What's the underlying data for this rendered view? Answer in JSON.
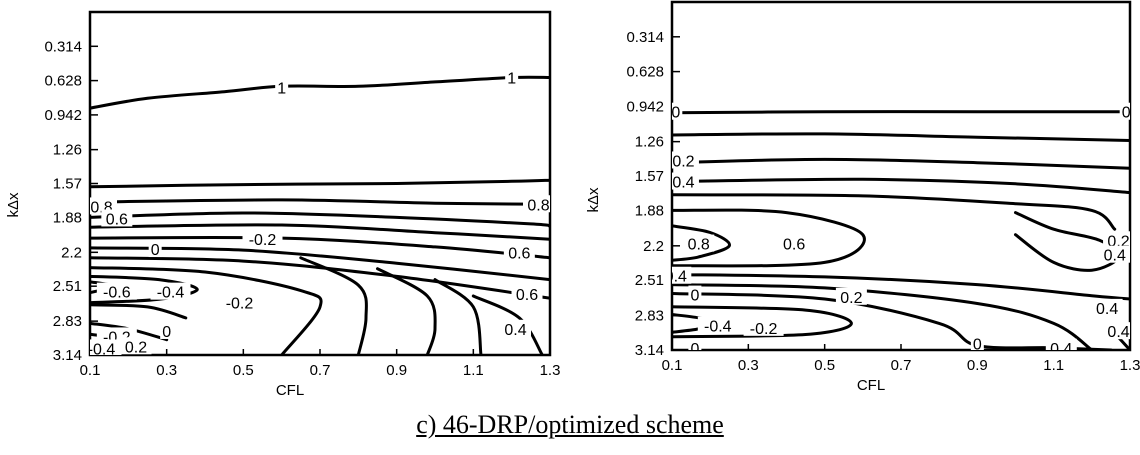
{
  "caption": "c)  46-DRP/optimized scheme",
  "chart_data": [
    {
      "type": "contour",
      "xlabel": "CFL",
      "ylabel": "kΔx",
      "xlim": [
        0.1,
        1.3
      ],
      "ylim": [
        0.0,
        3.14
      ],
      "y_reversed": true,
      "xticks": [
        "0.1",
        "0.3",
        "0.5",
        "0.7",
        "0.9",
        "1.1",
        "1.3"
      ],
      "yticks": [
        "0.314",
        "0.628",
        "0.942",
        "1.26",
        "1.57",
        "1.88",
        "2.2",
        "2.51",
        "2.83",
        "3.14"
      ],
      "contours": [
        {
          "level": "1",
          "points": [
            [
              0.1,
              0.88
            ],
            [
              0.25,
              0.79
            ],
            [
              0.45,
              0.73
            ],
            [
              0.6,
              0.68
            ],
            [
              0.8,
              0.68
            ],
            [
              1.0,
              0.64
            ],
            [
              1.2,
              0.6
            ],
            [
              1.3,
              0.6
            ]
          ]
        },
        {
          "level": "",
          "points": [
            [
              0.1,
              1.6
            ],
            [
              0.5,
              1.58
            ],
            [
              0.9,
              1.57
            ],
            [
              1.2,
              1.55
            ],
            [
              1.3,
              1.54
            ]
          ]
        },
        {
          "level": "0.8",
          "points": [
            [
              0.1,
              1.74
            ],
            [
              0.6,
              1.72
            ],
            [
              1.0,
              1.75
            ],
            [
              1.3,
              1.76
            ]
          ]
        },
        {
          "level": "0.6",
          "points": [
            [
              0.1,
              1.88
            ],
            [
              0.5,
              1.84
            ],
            [
              0.9,
              1.88
            ],
            [
              1.25,
              1.94
            ],
            [
              1.3,
              1.96
            ]
          ]
        },
        {
          "level": "",
          "points": [
            [
              0.1,
              1.97
            ],
            [
              0.6,
              1.95
            ],
            [
              1.0,
              2.02
            ],
            [
              1.3,
              2.08
            ]
          ]
        },
        {
          "level": "0.2",
          "points": [
            [
              0.1,
              2.07
            ],
            [
              0.6,
              2.07
            ],
            [
              1.0,
              2.15
            ],
            [
              1.3,
              2.25
            ]
          ]
        },
        {
          "level": "0",
          "points": [
            [
              0.1,
              2.16
            ],
            [
              0.5,
              2.18
            ],
            [
              0.9,
              2.3
            ],
            [
              1.3,
              2.45
            ]
          ]
        },
        {
          "level": "",
          "points": [
            [
              0.1,
              2.25
            ],
            [
              0.5,
              2.28
            ],
            [
              0.9,
              2.42
            ],
            [
              1.3,
              2.62
            ]
          ]
        },
        {
          "level": "-0.2",
          "points": [
            [
              0.1,
              2.34
            ],
            [
              0.4,
              2.38
            ],
            [
              0.65,
              2.55
            ],
            [
              0.7,
              2.7
            ],
            [
              0.6,
              3.14
            ]
          ]
        },
        {
          "level": "-0.4",
          "points": [
            [
              0.1,
              2.42
            ],
            [
              0.28,
              2.45
            ],
            [
              0.38,
              2.54
            ],
            [
              0.28,
              2.63
            ],
            [
              0.1,
              2.66
            ]
          ]
        },
        {
          "level": "-0.6",
          "points": [
            [
              0.1,
              2.47
            ],
            [
              0.16,
              2.51
            ],
            [
              0.1,
              2.57
            ]
          ]
        },
        {
          "level": "",
          "points": [
            [
              0.65,
              2.25
            ],
            [
              0.8,
              2.5
            ],
            [
              0.82,
              2.8
            ],
            [
              0.8,
              3.14
            ]
          ]
        },
        {
          "level": "",
          "points": [
            [
              0.85,
              2.35
            ],
            [
              0.98,
              2.6
            ],
            [
              1.0,
              2.9
            ],
            [
              0.98,
              3.14
            ]
          ]
        },
        {
          "level": "",
          "points": [
            [
              1.0,
              2.45
            ],
            [
              1.1,
              2.7
            ],
            [
              1.12,
              3.14
            ]
          ]
        },
        {
          "level": "0.4",
          "points": [
            [
              1.1,
              2.6
            ],
            [
              1.22,
              2.8
            ],
            [
              1.28,
              3.14
            ]
          ]
        },
        {
          "level": "0",
          "points": [
            [
              0.1,
              2.68
            ],
            [
              0.25,
              2.7
            ],
            [
              0.35,
              2.8
            ]
          ]
        },
        {
          "level": "-0.2",
          "points": [
            [
              0.1,
              2.85
            ],
            [
              0.2,
              2.9
            ],
            [
              0.3,
              3.0
            ]
          ]
        },
        {
          "level": "-0.4",
          "points": [
            [
              0.1,
              2.95
            ],
            [
              0.18,
              3.0
            ],
            [
              0.22,
              3.14
            ]
          ]
        }
      ],
      "labels": [
        {
          "text": "1",
          "x": 0.6,
          "y": 0.69
        },
        {
          "text": "1",
          "x": 1.2,
          "y": 0.6
        },
        {
          "text": "0.8",
          "x": 0.13,
          "y": 1.78
        },
        {
          "text": "0.8",
          "x": 1.27,
          "y": 1.76
        },
        {
          "text": "0.6",
          "x": 0.17,
          "y": 1.89
        },
        {
          "text": "0",
          "x": 0.27,
          "y": 2.17
        },
        {
          "text": "-0.2",
          "x": 0.55,
          "y": 2.08
        },
        {
          "text": "0.6",
          "x": 1.22,
          "y": 2.2
        },
        {
          "text": "0.6",
          "x": 1.24,
          "y": 2.58
        },
        {
          "text": "-0.6",
          "x": 0.17,
          "y": 2.56
        },
        {
          "text": "-0.4",
          "x": 0.31,
          "y": 2.56
        },
        {
          "text": "-0.2",
          "x": 0.49,
          "y": 2.66
        },
        {
          "text": "0.4",
          "x": 1.21,
          "y": 2.9
        },
        {
          "text": "-0.2",
          "x": 0.17,
          "y": 2.97
        },
        {
          "text": "0",
          "x": 0.3,
          "y": 2.92
        },
        {
          "text": "-0.4",
          "x": 0.13,
          "y": 3.08
        },
        {
          "text": "0.2",
          "x": 0.22,
          "y": 3.06
        }
      ]
    },
    {
      "type": "contour",
      "xlabel": "CFL",
      "ylabel": "kΔx",
      "xlim": [
        0.1,
        1.3
      ],
      "ylim": [
        0.0,
        3.14
      ],
      "y_reversed": true,
      "xticks": [
        "0.1",
        "0.3",
        "0.5",
        "0.7",
        "0.9",
        "1.1",
        "1.3"
      ],
      "yticks": [
        "0.314",
        "0.628",
        "0.942",
        "1.26",
        "1.57",
        "1.88",
        "2.2",
        "2.51",
        "2.83",
        "3.14"
      ],
      "contours": [
        {
          "level": "0",
          "points": [
            [
              0.1,
              1.0
            ],
            [
              0.5,
              0.99
            ],
            [
              0.9,
              0.99
            ],
            [
              1.3,
              0.99
            ]
          ]
        },
        {
          "level": "",
          "points": [
            [
              0.1,
              1.2
            ],
            [
              0.5,
              1.19
            ],
            [
              0.9,
              1.22
            ],
            [
              1.3,
              1.25
            ]
          ]
        },
        {
          "level": "0.2",
          "points": [
            [
              0.1,
              1.45
            ],
            [
              0.5,
              1.42
            ],
            [
              0.9,
              1.45
            ],
            [
              1.3,
              1.5
            ]
          ]
        },
        {
          "level": "0.4",
          "points": [
            [
              0.1,
              1.62
            ],
            [
              0.6,
              1.6
            ],
            [
              1.0,
              1.64
            ],
            [
              1.3,
              1.72
            ]
          ]
        },
        {
          "level": "",
          "points": [
            [
              0.1,
              1.74
            ],
            [
              0.6,
              1.75
            ],
            [
              1.0,
              1.82
            ],
            [
              1.2,
              1.88
            ],
            [
              1.26,
              2.05
            ]
          ]
        },
        {
          "level": "0.6",
          "points": [
            [
              0.1,
              1.88
            ],
            [
              0.4,
              1.9
            ],
            [
              0.6,
              2.1
            ],
            [
              0.5,
              2.35
            ],
            [
              0.1,
              2.38
            ]
          ]
        },
        {
          "level": "0.8",
          "points": [
            [
              0.1,
              2.02
            ],
            [
              0.2,
              2.08
            ],
            [
              0.25,
              2.2
            ],
            [
              0.17,
              2.3
            ],
            [
              0.1,
              2.33
            ]
          ]
        },
        {
          "level": "",
          "points": [
            [
              1.0,
              1.9
            ],
            [
              1.1,
              2.05
            ],
            [
              1.22,
              2.15
            ],
            [
              1.27,
              2.3
            ],
            [
              1.2,
              2.42
            ],
            [
              1.1,
              2.35
            ],
            [
              1.0,
              2.1
            ]
          ]
        },
        {
          "level": "0.4",
          "points": [
            [
              0.1,
              2.46
            ],
            [
              0.5,
              2.48
            ],
            [
              0.9,
              2.55
            ],
            [
              1.2,
              2.65
            ],
            [
              1.3,
              2.68
            ]
          ]
        },
        {
          "level": "0.2",
          "points": [
            [
              0.1,
              2.55
            ],
            [
              0.5,
              2.58
            ],
            [
              0.9,
              2.72
            ],
            [
              1.1,
              2.9
            ],
            [
              1.2,
              3.14
            ]
          ]
        },
        {
          "level": "0",
          "points": [
            [
              0.1,
              2.63
            ],
            [
              0.5,
              2.68
            ],
            [
              0.8,
              2.9
            ],
            [
              0.9,
              3.1
            ],
            [
              1.1,
              3.12
            ],
            [
              1.25,
              3.14
            ]
          ]
        },
        {
          "level": "-0.2",
          "points": [
            [
              0.1,
              2.75
            ],
            [
              0.45,
              2.78
            ],
            [
              0.57,
              2.9
            ],
            [
              0.45,
              3.0
            ],
            [
              0.1,
              3.02
            ]
          ]
        },
        {
          "level": "-0.4",
          "points": [
            [
              0.1,
              2.82
            ],
            [
              0.17,
              2.85
            ],
            [
              0.22,
              2.9
            ],
            [
              0.17,
              2.95
            ],
            [
              0.1,
              2.98
            ]
          ]
        },
        {
          "level": "0.4",
          "points": [
            [
              1.25,
              2.95
            ],
            [
              1.3,
              3.14
            ]
          ]
        }
      ],
      "labels": [
        {
          "text": "0",
          "x": 0.11,
          "y": 0.99
        },
        {
          "text": "0",
          "x": 1.29,
          "y": 0.99
        },
        {
          "text": "0.2",
          "x": 0.13,
          "y": 1.43
        },
        {
          "text": "0.4",
          "x": 0.13,
          "y": 1.62
        },
        {
          "text": "0.8",
          "x": 0.17,
          "y": 2.18
        },
        {
          "text": "0.6",
          "x": 0.42,
          "y": 2.18
        },
        {
          "text": "0.2",
          "x": 1.27,
          "y": 2.15
        },
        {
          "text": "0.4",
          "x": 1.26,
          "y": 2.28
        },
        {
          "text": "0.4",
          "x": 0.11,
          "y": 2.47
        },
        {
          "text": "0",
          "x": 0.16,
          "y": 2.64
        },
        {
          "text": "0.2",
          "x": 0.57,
          "y": 2.66
        },
        {
          "text": "0.4",
          "x": 1.24,
          "y": 2.76
        },
        {
          "text": "-0.4",
          "x": 0.22,
          "y": 2.92
        },
        {
          "text": "-0.2",
          "x": 0.34,
          "y": 2.94
        },
        {
          "text": "0.4",
          "x": 1.27,
          "y": 2.97
        },
        {
          "text": "0",
          "x": 0.9,
          "y": 3.08
        },
        {
          "text": "0.4",
          "x": 1.12,
          "y": 3.12
        },
        {
          "text": "0",
          "x": 0.16,
          "y": 3.12
        }
      ]
    }
  ]
}
